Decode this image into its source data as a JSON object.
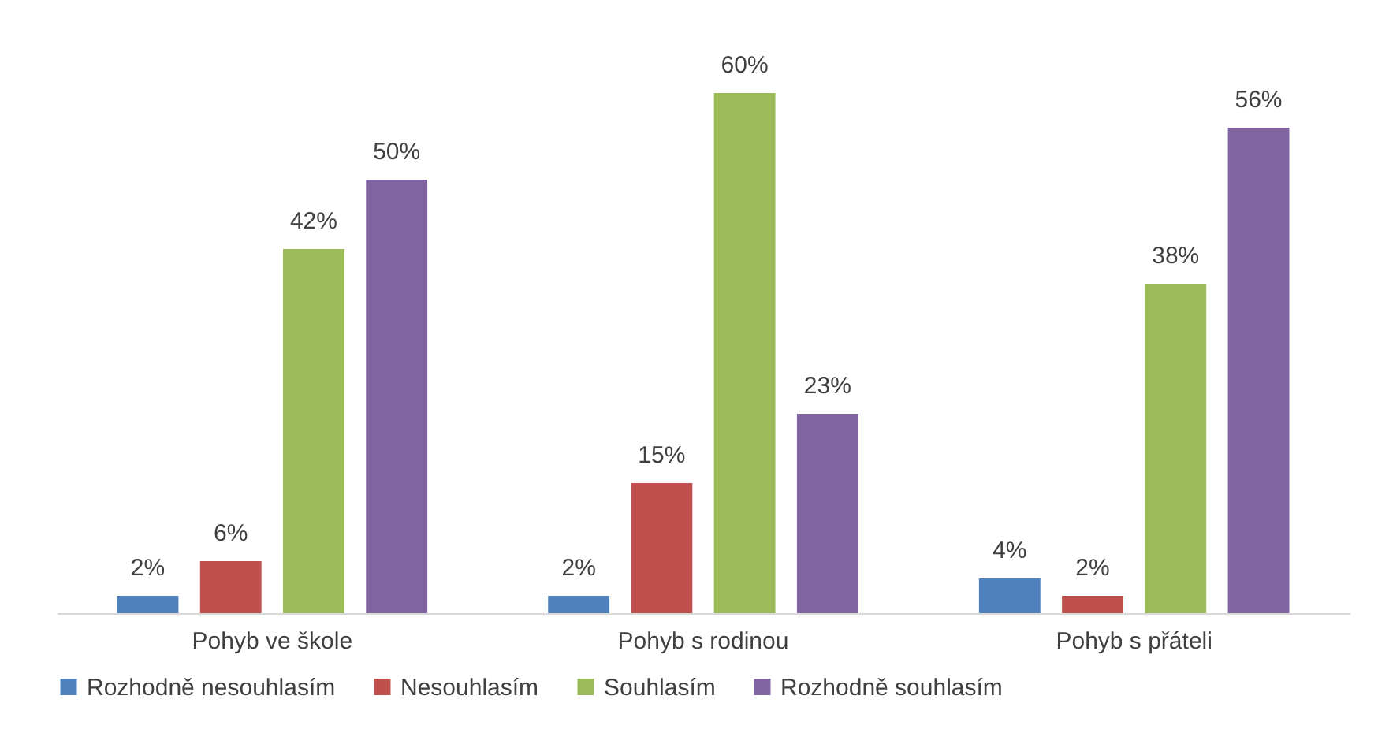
{
  "chart_data": {
    "type": "bar",
    "categories": [
      "Pohyb ve škole",
      "Pohyb s rodinou",
      "Pohyb s přáteli"
    ],
    "series": [
      {
        "name": "Rozhodně nesouhlasím",
        "color": "#4f81bd",
        "values": [
          2,
          2,
          4
        ],
        "value_labels": [
          "2%",
          "2%",
          "4%"
        ]
      },
      {
        "name": "Nesouhlasím",
        "color": "#c0504d",
        "values": [
          6,
          15,
          2
        ],
        "value_labels": [
          "6%",
          "15%",
          "2%"
        ]
      },
      {
        "name": "Souhlasím",
        "color": "#9bbb59",
        "values": [
          42,
          60,
          38
        ],
        "value_labels": [
          "42%",
          "60%",
          "38%"
        ]
      },
      {
        "name": "Rozhodně souhlasím",
        "color": "#8064a2",
        "values": [
          50,
          23,
          56
        ],
        "value_labels": [
          "50%",
          "23%",
          "56%"
        ]
      }
    ],
    "legend": "bottom",
    "grid": false
  }
}
